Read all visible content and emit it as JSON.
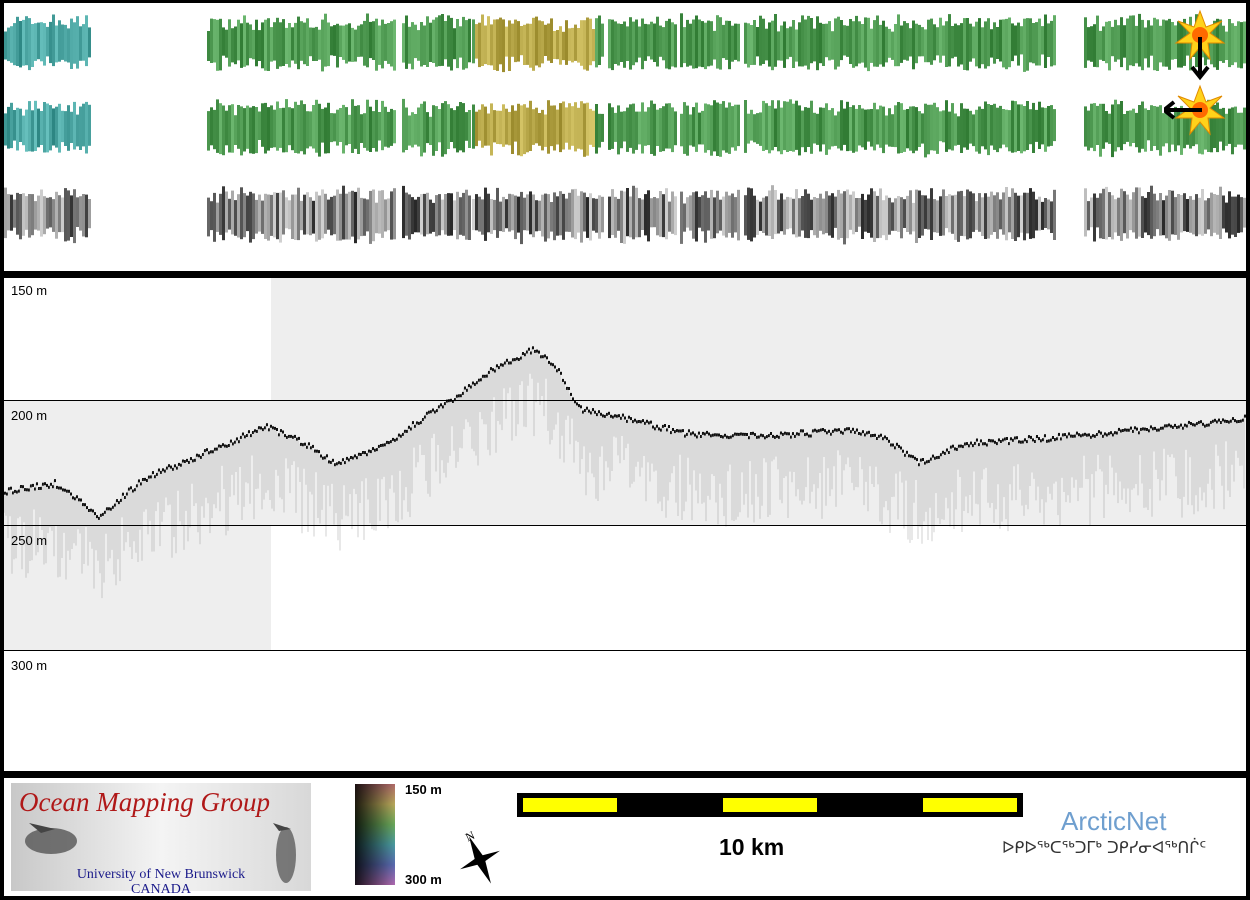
{
  "depth_axis": {
    "labels": [
      "150 m",
      "200 m",
      "250 m",
      "300 m"
    ]
  },
  "strip_rows": [
    {
      "name": "sun-illuminated-north",
      "style": "colour-shaded relief"
    },
    {
      "name": "sun-illuminated-east",
      "style": "colour-shaded relief"
    },
    {
      "name": "backscatter",
      "style": "greyscale"
    }
  ],
  "legend": {
    "organization": {
      "title": "Ocean Mapping Group",
      "university": "University of New Brunswick",
      "country": "CANADA"
    },
    "colorbar": {
      "top_label": "150 m",
      "bottom_label": "300 m"
    },
    "scale": {
      "label": "10 km",
      "bar_color_a": "#ffff00",
      "bar_color_b": "#000000"
    },
    "north_arrow": {
      "label": "N"
    },
    "partner": {
      "name": "ArcticNet",
      "syllabics": "ᐅᑭᐅᖅᑕᖅᑐᒥᒃ ᑐᑭᓯᓂᐊᖅᑎᒌᑦ"
    }
  },
  "colors": {
    "relief_green": "#4f9a52",
    "relief_cyan": "#4aa3a0",
    "relief_yellow": "#b8a84a",
    "profile_window": "#eeeeee",
    "sun_icon": "#ffd21a"
  }
}
